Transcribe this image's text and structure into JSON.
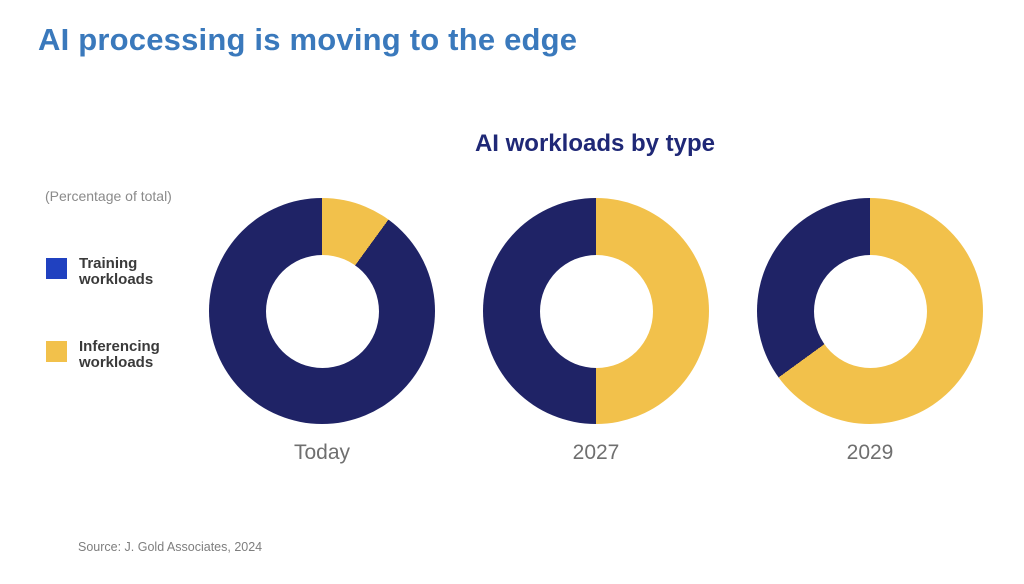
{
  "title": "AI processing is moving to the edge",
  "source": "Source: J. Gold Associates, 2024",
  "chart_data": {
    "type": "donut",
    "title": "AI workloads by type",
    "units_note": "(Percentage of total)",
    "legend_position": "left",
    "grid": false,
    "legend": [
      {
        "name": "Training workloads",
        "color": "#2041C0"
      },
      {
        "name": "Inferencing workloads",
        "color": "#F2C14B"
      }
    ],
    "slice_colors": {
      "training": "#1F2366",
      "inferencing": "#F2C14B"
    },
    "hole_ratio": 0.5,
    "charts": [
      {
        "label": "Today",
        "training_pct": 90,
        "inferencing_pct": 10
      },
      {
        "label": "2027",
        "training_pct": 50,
        "inferencing_pct": 50
      },
      {
        "label": "2029",
        "training_pct": 35,
        "inferencing_pct": 65
      }
    ]
  }
}
